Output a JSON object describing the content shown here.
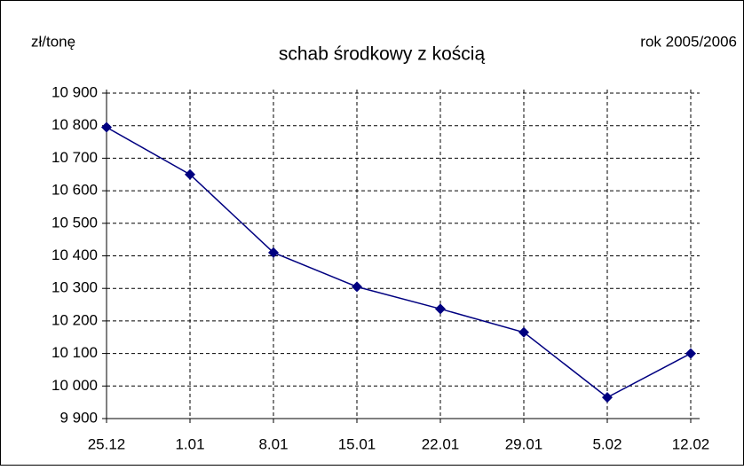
{
  "chart_data": {
    "type": "line",
    "title": "schab środkowy z kością",
    "y_label": "zł/tonę",
    "subtitle": "rok 2005/2006",
    "categories": [
      "25.12",
      "1.01",
      "8.01",
      "15.01",
      "22.01",
      "29.01",
      "5.02",
      "12.02"
    ],
    "series": [
      {
        "name": "schab środkowy z kością",
        "color": "#000080",
        "values": [
          10795,
          10650,
          10410,
          10305,
          10237,
          10165,
          9965,
          10100
        ]
      }
    ],
    "ylim": [
      9900,
      10900
    ],
    "yticks": [
      {
        "value": 9900,
        "label": "9 900"
      },
      {
        "value": 10000,
        "label": "10 000"
      },
      {
        "value": 10100,
        "label": "10 100"
      },
      {
        "value": 10200,
        "label": "10 200"
      },
      {
        "value": 10300,
        "label": "10 300"
      },
      {
        "value": 10400,
        "label": "10 400"
      },
      {
        "value": 10500,
        "label": "10 500"
      },
      {
        "value": 10600,
        "label": "10 600"
      },
      {
        "value": 10700,
        "label": "10 700"
      },
      {
        "value": 10800,
        "label": "10 800"
      },
      {
        "value": 10900,
        "label": "10 900"
      }
    ],
    "grid": true
  }
}
